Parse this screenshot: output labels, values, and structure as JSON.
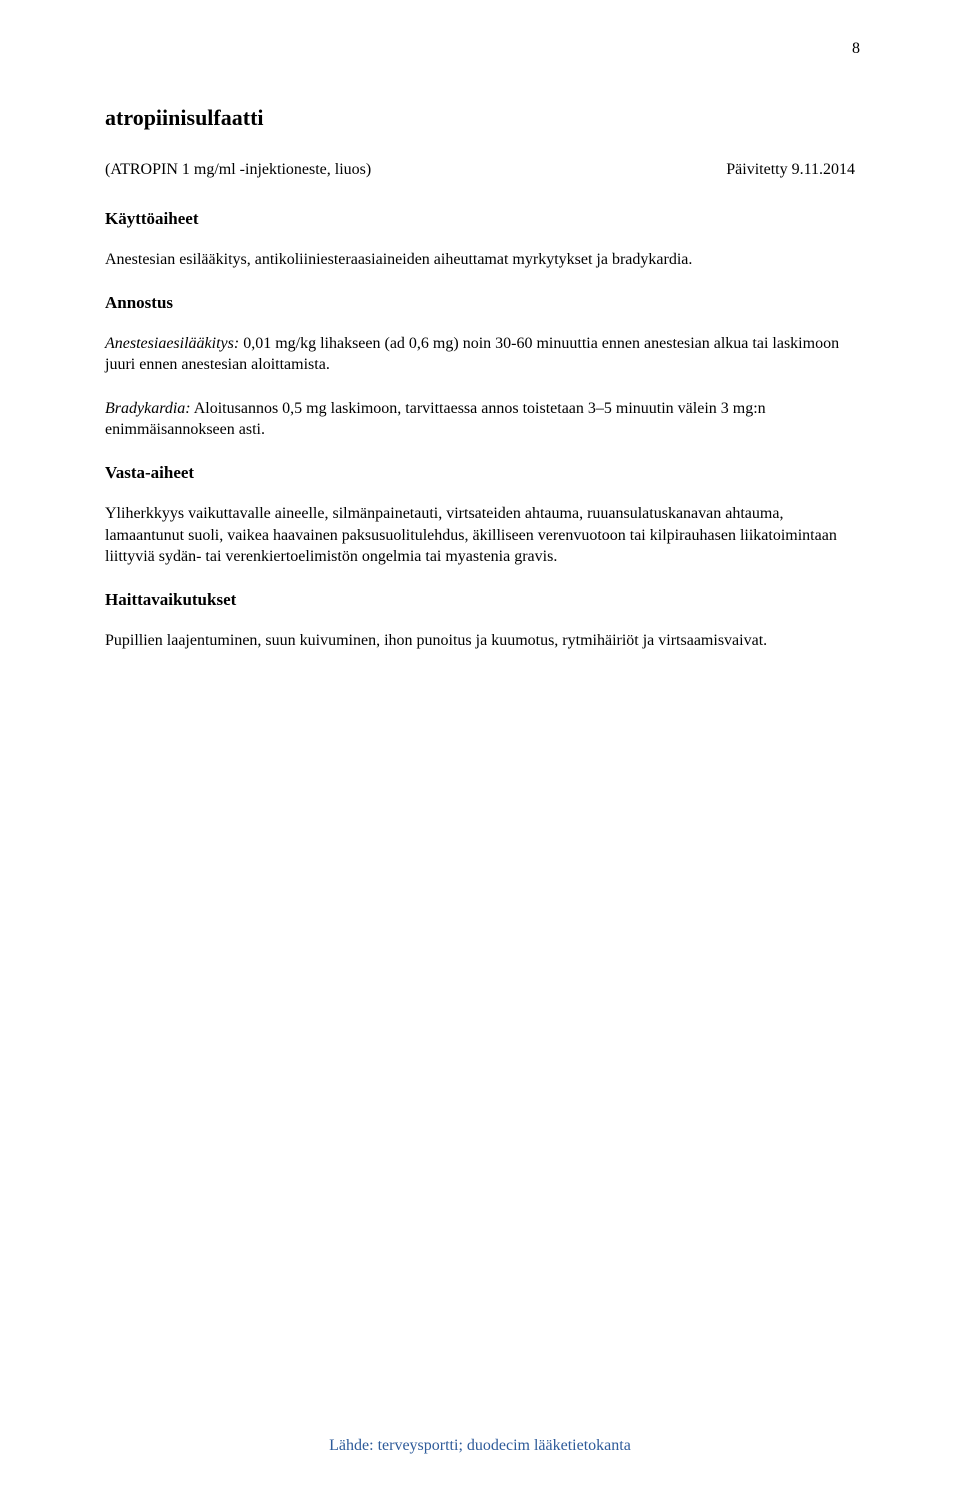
{
  "page": {
    "number": "8"
  },
  "drug": {
    "name": "atropiinisulfaatti",
    "product": "(ATROPIN 1 mg/ml -injektioneste, liuos)",
    "updated": "Päivitetty 9.11.2014"
  },
  "sections": {
    "indications": {
      "heading": "Käyttöaiheet",
      "text": "Anestesian esilääkitys, antikoliiniesteraasiaineiden aiheuttamat myrkytykset ja bradykardia."
    },
    "dosage": {
      "heading": "Annostus",
      "para1_italic": "Anestesiaesilääkitys:",
      "para1_rest": " 0,01 mg/kg lihakseen (ad 0,6 mg) noin 30-60 minuuttia ennen anestesian alkua tai laskimoon juuri ennen anestesian aloittamista.",
      "para2_italic": "Bradykardia:",
      "para2_rest": " Aloitusannos 0,5 mg laskimoon, tarvittaessa annos toistetaan 3–5 minuutin välein 3 mg:n enimmäisannokseen asti."
    },
    "contraindications": {
      "heading": "Vasta-aiheet",
      "text": "Yliherkkyys vaikuttavalle aineelle, silmänpainetauti, virtsateiden ahtauma, ruuansulatuskanavan ahtauma, lamaantunut suoli, vaikea haavainen paksusuolitulehdus, äkilliseen verenvuotoon tai kilpirauhasen liikatoimintaan liittyviä sydän- tai verenkiertoelimistön ongelmia tai myastenia gravis."
    },
    "adverse": {
      "heading": "Haittavaikutukset",
      "text": "Pupillien laajentuminen, suun kuivuminen, ihon punoitus ja kuumotus, rytmihäiriöt ja virtsaamisvaivat."
    }
  },
  "source": {
    "text": "Lähde: terveysportti; duodecim lääketietokanta"
  },
  "styles": {
    "text_color": "#000000",
    "background_color": "#ffffff",
    "source_color": "#2e5b9a",
    "heading_fontsize": 17,
    "body_fontsize": 16,
    "drugname_fontsize": 22
  }
}
